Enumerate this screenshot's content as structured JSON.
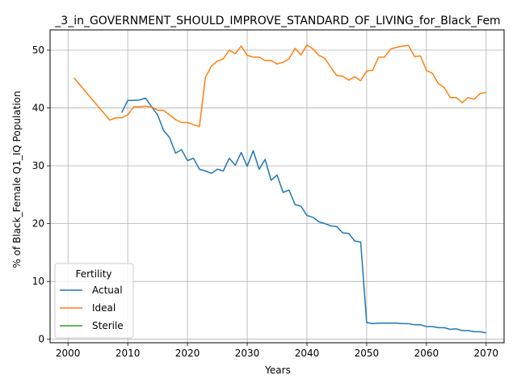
{
  "chart_data": {
    "type": "line",
    "title": "_3_in_GOVERNMENT_SHOULD_IMPROVE_STANDARD_OF_LIVING_for_Black_Fem",
    "xlabel": "Years",
    "ylabel": "% of Black_Female Q1_IQ Population",
    "xlim": [
      1997,
      2073
    ],
    "ylim": [
      -0.6,
      53.5
    ],
    "xticks": [
      2000,
      2010,
      2020,
      2030,
      2040,
      2050,
      2060,
      2070
    ],
    "yticks": [
      0,
      10,
      20,
      30,
      40,
      50
    ],
    "grid": true,
    "legend": {
      "title": "Fertility",
      "placement": "lower-left"
    },
    "series": [
      {
        "name": "Actual",
        "color": "#1f77b4",
        "x": [
          2009,
          2010,
          2011,
          2012,
          2013,
          2014,
          2015,
          2016,
          2017,
          2018,
          2019,
          2020,
          2021,
          2022,
          2023,
          2024,
          2025,
          2026,
          2027,
          2028,
          2029,
          2030,
          2031,
          2032,
          2033,
          2034,
          2035,
          2036,
          2037,
          2038,
          2039,
          2040,
          2041,
          2042,
          2043,
          2044,
          2045,
          2046,
          2047,
          2048,
          2049,
          2050,
          2051,
          2052,
          2053,
          2054,
          2055,
          2056,
          2057,
          2058,
          2059,
          2060,
          2061,
          2062,
          2063,
          2064,
          2065,
          2066,
          2067,
          2068,
          2069,
          2070
        ],
        "y": [
          39.2,
          41.3,
          41.3,
          41.4,
          41.7,
          40.2,
          38.8,
          36.1,
          34.9,
          32.2,
          32.8,
          30.9,
          31.3,
          29.4,
          29.1,
          28.7,
          29.4,
          29.1,
          31.3,
          30.1,
          32.3,
          29.9,
          32.6,
          29.4,
          31.1,
          27.5,
          28.4,
          25.4,
          25.8,
          23.3,
          23.0,
          21.4,
          21.1,
          20.3,
          20.0,
          19.6,
          19.5,
          18.4,
          18.3,
          17.0,
          16.8,
          2.9,
          2.7,
          2.8,
          2.8,
          2.8,
          2.8,
          2.7,
          2.7,
          2.5,
          2.5,
          2.2,
          2.2,
          2.0,
          2.0,
          1.7,
          1.8,
          1.5,
          1.5,
          1.3,
          1.3,
          1.1
        ]
      },
      {
        "name": "Ideal",
        "color": "#ff7f0e",
        "x": [
          2001,
          2007,
          2008,
          2009,
          2010,
          2011,
          2012,
          2013,
          2014,
          2015,
          2016,
          2017,
          2018,
          2019,
          2020,
          2021,
          2022,
          2023,
          2024,
          2025,
          2026,
          2027,
          2028,
          2029,
          2030,
          2031,
          2032,
          2033,
          2034,
          2035,
          2036,
          2037,
          2038,
          2039,
          2040,
          2041,
          2042,
          2043,
          2044,
          2045,
          2046,
          2047,
          2048,
          2049,
          2050,
          2051,
          2052,
          2053,
          2054,
          2055,
          2056,
          2057,
          2058,
          2059,
          2060,
          2061,
          2062,
          2063,
          2064,
          2065,
          2066,
          2067,
          2068,
          2069,
          2070
        ],
        "y": [
          45.2,
          37.9,
          38.3,
          38.3,
          38.8,
          40.2,
          40.2,
          40.3,
          40.2,
          39.6,
          39.6,
          38.8,
          38.0,
          37.5,
          37.5,
          37.1,
          36.8,
          45.3,
          47.2,
          48.1,
          48.5,
          50.0,
          49.4,
          50.7,
          49.1,
          48.8,
          48.8,
          48.2,
          48.2,
          47.6,
          47.9,
          48.5,
          50.3,
          49.2,
          50.9,
          50.2,
          49.1,
          48.6,
          47.0,
          45.6,
          45.5,
          44.8,
          45.4,
          44.7,
          46.4,
          46.5,
          48.8,
          48.8,
          50.2,
          50.5,
          50.7,
          50.8,
          48.9,
          49.0,
          46.5,
          46.0,
          44.2,
          43.5,
          41.8,
          41.8,
          40.9,
          41.8,
          41.5,
          42.5,
          42.7
        ]
      },
      {
        "name": "Sterile",
        "color": "#2ca02c",
        "x": [],
        "y": []
      }
    ]
  }
}
